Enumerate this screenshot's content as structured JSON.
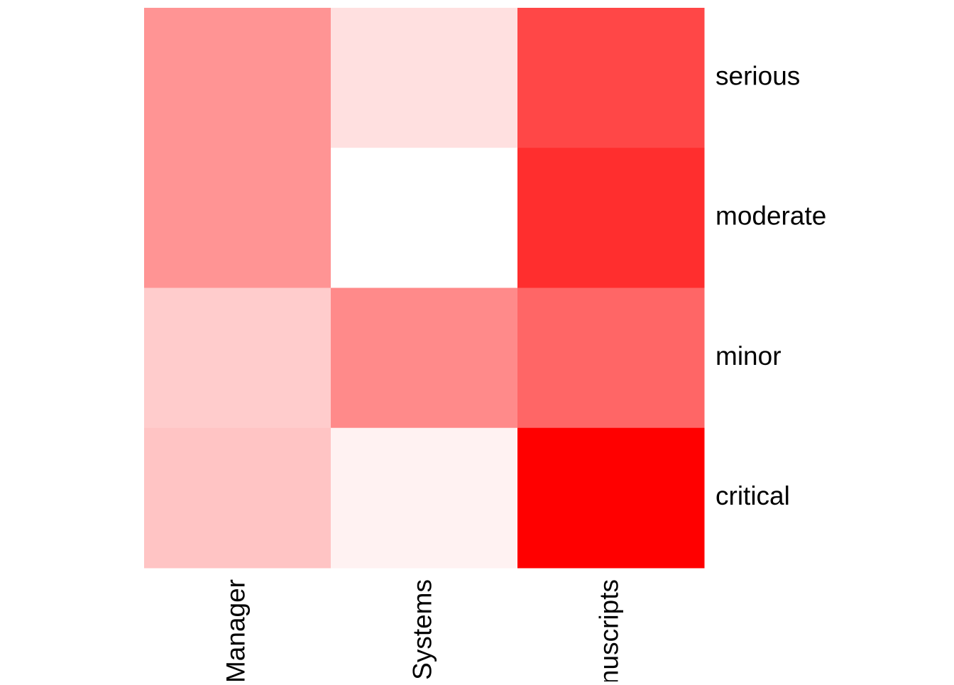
{
  "chart_data": {
    "type": "heatmap",
    "title": "",
    "xlabel": "",
    "ylabel": "",
    "columns": [
      "Manager",
      "Systems",
      "nuscripts"
    ],
    "rows": [
      "serious",
      "moderate",
      "minor",
      "critical"
    ],
    "values": [
      [
        0.42,
        0.12,
        0.72
      ],
      [
        0.42,
        0.0,
        0.82
      ],
      [
        0.2,
        0.46,
        0.6
      ],
      [
        0.23,
        0.05,
        1.0
      ]
    ],
    "value_range": [
      0,
      1
    ],
    "color_low": "#FFFFFF",
    "color_high": "#FF0000",
    "legend": "none",
    "grid": false
  }
}
